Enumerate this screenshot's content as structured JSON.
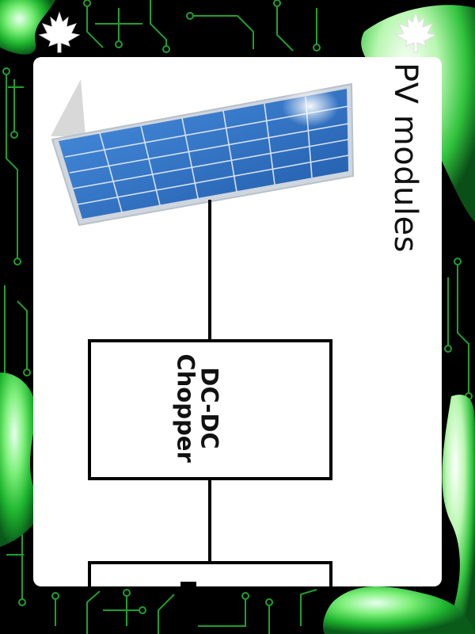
{
  "diagram": {
    "pv_label": "PV modules",
    "chopper_label": "DC-DC\nChopper"
  },
  "theme": {
    "border_background": "#000000",
    "circuit_trace_color": "#1fa02c",
    "blob_color": "#2bd43a",
    "card_background": "#ffffff",
    "panel_cell_color": "#2a6fc2",
    "line_color": "#000000"
  },
  "icons": [
    "maple-leaf-icon",
    "maple-leaf-icon"
  ]
}
